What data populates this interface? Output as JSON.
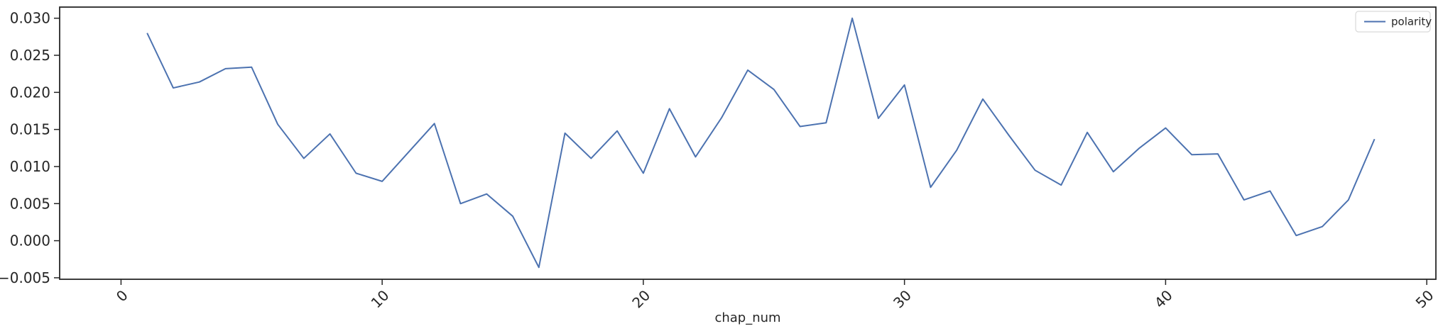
{
  "chart_data": {
    "type": "line",
    "title": "",
    "xlabel": "chap_num",
    "ylabel": "",
    "xlim": [
      -2.35,
      50.35
    ],
    "ylim": [
      -0.0052,
      0.0315
    ],
    "x_ticks": [
      0,
      10,
      20,
      30,
      40,
      50
    ],
    "x_tick_labels": [
      "0",
      "10",
      "20",
      "30",
      "40",
      "50"
    ],
    "y_ticks": [
      -0.005,
      0.0,
      0.005,
      0.01,
      0.015,
      0.02,
      0.025,
      0.03
    ],
    "y_tick_labels": [
      "−0.005",
      "0.000",
      "0.005",
      "0.010",
      "0.015",
      "0.020",
      "0.025",
      "0.030"
    ],
    "grid": false,
    "legend_position": "upper right",
    "series": [
      {
        "name": "polarity",
        "color": "#4c72b0",
        "x": [
          1,
          2,
          3,
          4,
          5,
          6,
          7,
          8,
          9,
          10,
          11,
          12,
          13,
          14,
          15,
          16,
          17,
          18,
          19,
          20,
          21,
          22,
          23,
          24,
          25,
          26,
          27,
          28,
          29,
          30,
          31,
          32,
          33,
          34,
          35,
          36,
          37,
          38,
          39,
          40,
          41,
          42,
          43,
          44,
          45,
          46,
          47,
          48
        ],
        "y": [
          0.028,
          0.0206,
          0.0214,
          0.0232,
          0.0234,
          0.0157,
          0.0111,
          0.0144,
          0.0091,
          0.008,
          0.0119,
          0.0158,
          0.005,
          0.0063,
          0.0033,
          -0.0036,
          0.0145,
          0.0111,
          0.0148,
          0.0091,
          0.0178,
          0.0113,
          0.0166,
          0.023,
          0.0204,
          0.0154,
          0.0159,
          0.03,
          0.0165,
          0.021,
          0.0072,
          0.0122,
          0.0191,
          0.0142,
          0.0095,
          0.0075,
          0.0146,
          0.0093,
          0.0125,
          0.0152,
          0.0116,
          0.0117,
          0.0055,
          0.0067,
          0.0007,
          0.0019,
          0.0055,
          0.0137
        ]
      }
    ]
  }
}
